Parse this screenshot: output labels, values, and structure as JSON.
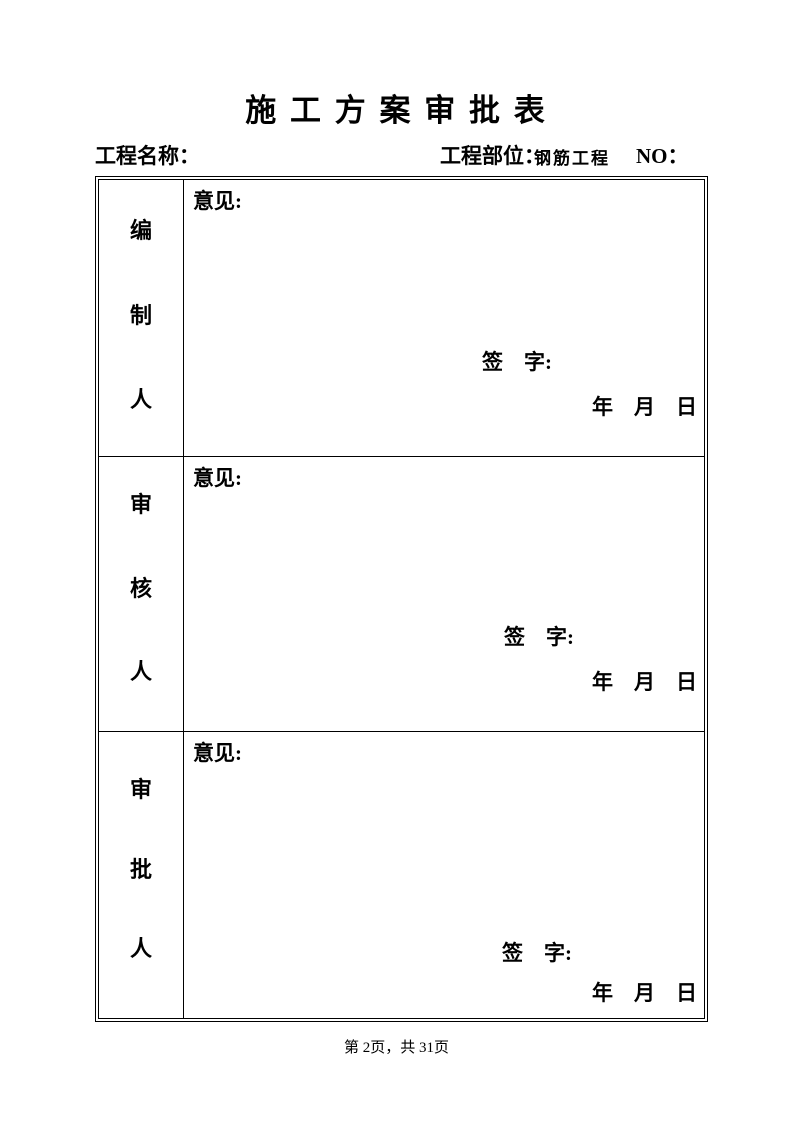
{
  "title": "施 工 方 案 审 批 表",
  "header": {
    "project_name_label": "工程名称：",
    "project_part_label": "工程部位：",
    "project_part_value": "钢筋工程",
    "no_label": "NO："
  },
  "labels": {
    "opinion": "意见:",
    "sign": "签　字:",
    "date": "年　月　日"
  },
  "table": {
    "rows": [
      {
        "role": "编制人",
        "role_chars": [
          "编",
          "制",
          "人"
        ]
      },
      {
        "role": "审核人",
        "role_chars": [
          "审",
          "核",
          "人"
        ]
      },
      {
        "role": "审批人",
        "role_chars": [
          "审",
          "批",
          "人"
        ]
      }
    ]
  },
  "footer": {
    "page_info": "第 2页，共 31页"
  },
  "colors": {
    "text": "#000000",
    "background": "#ffffff",
    "border": "#000000"
  }
}
